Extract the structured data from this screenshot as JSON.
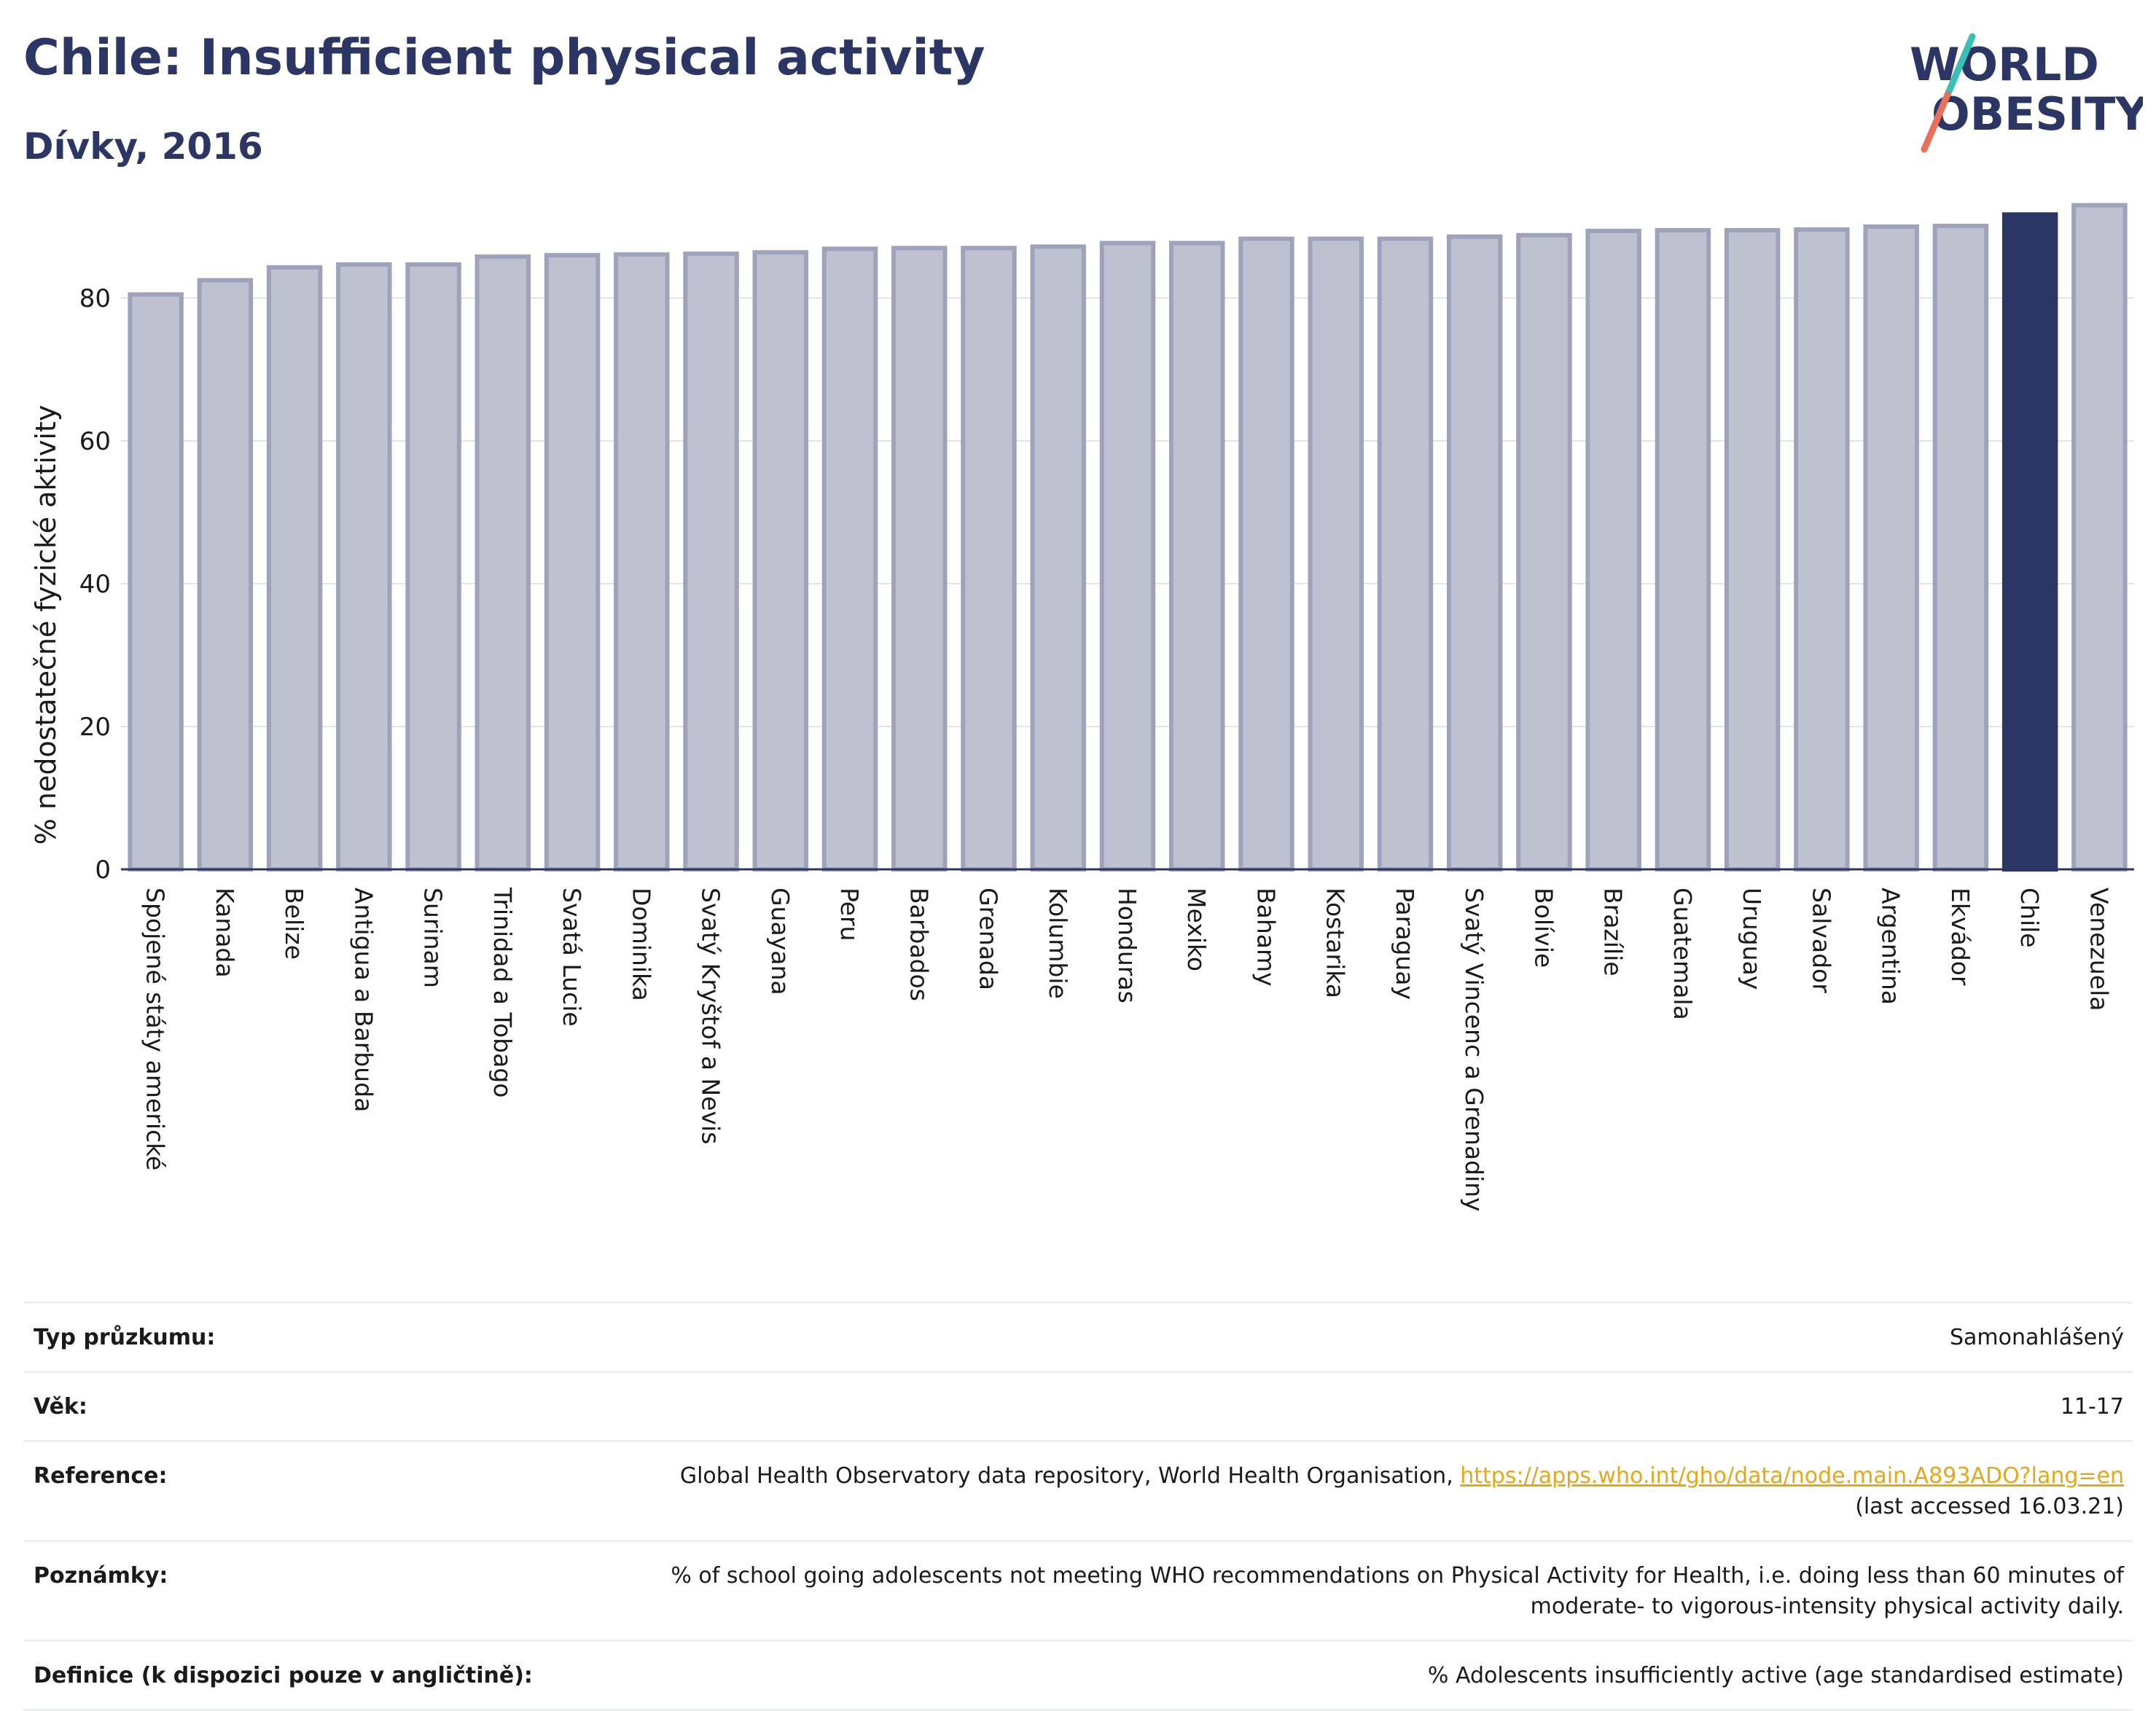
{
  "header": {
    "title": "Chile: Insufficient physical activity",
    "subtitle": "Dívky, 2016"
  },
  "logo": {
    "line1": "WORLD",
    "line2": "OBESITY",
    "accent_teal": "#3bbfb5",
    "accent_coral": "#e8705a",
    "text_color": "#2b3664"
  },
  "colors": {
    "bar": "#bec1cf",
    "bar_edge": "#9ea3bb",
    "highlight": "#2b3664",
    "axis": "#2b3664"
  },
  "chart_data": {
    "type": "bar",
    "ylabel": "% nedostatečné fyzické aktivity",
    "xlabel": "",
    "ylim": [
      0,
      95
    ],
    "yticks": [
      0,
      20,
      40,
      60,
      80
    ],
    "grid": true,
    "highlight": "Chile",
    "categories": [
      "Spojené státy americké",
      "Kanada",
      "Belize",
      "Antigua a Barbuda",
      "Surinam",
      "Trinidad a Tobago",
      "Svatá Lucie",
      "Dominika",
      "Svatý Kryštof a Nevis",
      "Guayana",
      "Peru",
      "Barbados",
      "Grenada",
      "Kolumbie",
      "Honduras",
      "Mexiko",
      "Bahamy",
      "Kostarika",
      "Paraguay",
      "Svatý Vincenc a Grenadiny",
      "Bolívie",
      "Brazílie",
      "Guatemala",
      "Uruguay",
      "Salvador",
      "Argentina",
      "Ekvádor",
      "Chile",
      "Venezuela"
    ],
    "values": [
      80.5,
      82.5,
      84.3,
      84.7,
      84.7,
      85.8,
      86.0,
      86.1,
      86.2,
      86.4,
      86.9,
      87.0,
      87.0,
      87.2,
      87.7,
      87.7,
      88.3,
      88.3,
      88.3,
      88.6,
      88.8,
      89.4,
      89.5,
      89.5,
      89.6,
      90.0,
      90.1,
      91.7,
      93.0
    ]
  },
  "info": {
    "rows": [
      {
        "label": "Typ průzkumu:",
        "value": "Samonahlášený"
      },
      {
        "label": "Věk:",
        "value": "11-17"
      },
      {
        "label": "Reference:",
        "value": "Global Health Observatory data repository, World Health Organisation, ",
        "link": "https://apps.who.int/gho/data/node.main.A893ADO?lang=en",
        "value2": "(last accessed 16.03.21)"
      },
      {
        "label": "Poznámky:",
        "value": "% of school going adolescents not meeting WHO recommendations on Physical Activity for Health, i.e. doing less than 60 minutes of moderate- to vigorous-intensity physical activity daily."
      },
      {
        "label": "Definice (k dispozici pouze v angličtině):",
        "value": "% Adolescents insufficiently active (age standardised estimate)"
      }
    ]
  }
}
